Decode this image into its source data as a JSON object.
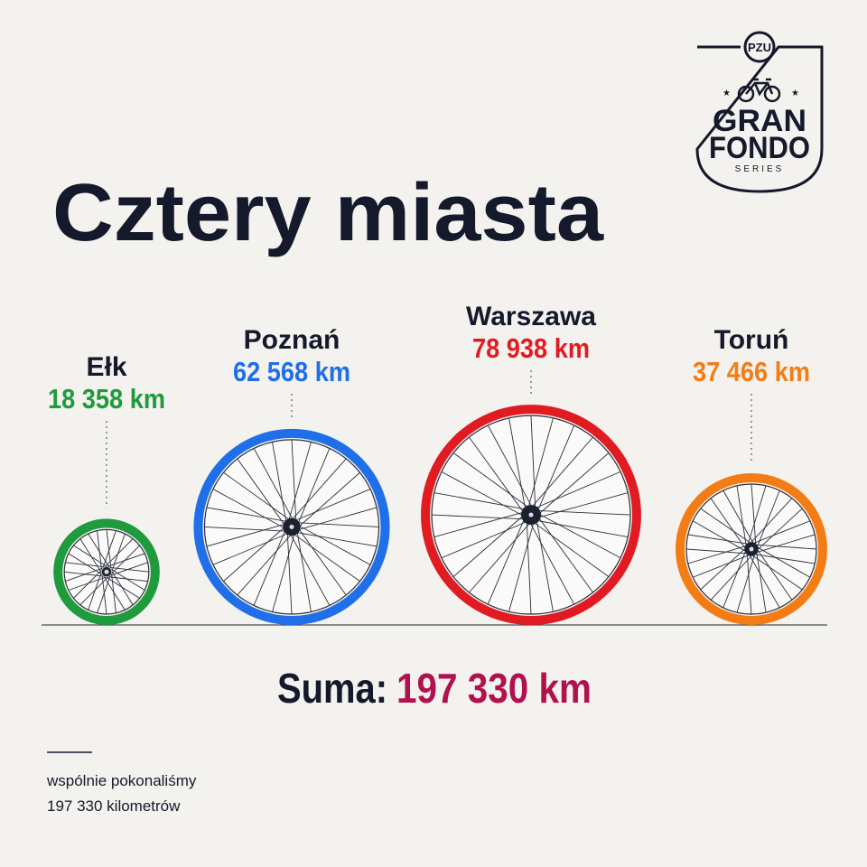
{
  "logo": {
    "badge": "PZU",
    "line1": "GRAN",
    "line2": "FONDO",
    "line3": "SERIES"
  },
  "title": "Cztery miasta",
  "cities": [
    {
      "name": "Ełk",
      "value": 18358,
      "value_label": "18 358 km",
      "color": "#1f9a3c"
    },
    {
      "name": "Poznań",
      "value": 62568,
      "value_label": "62 568 km",
      "color": "#1f6fe8"
    },
    {
      "name": "Warszawa",
      "value": 78938,
      "value_label": "78 938 km",
      "color": "#e01b22"
    },
    {
      "name": "Toruń",
      "value": 37466,
      "value_label": "37 466 km",
      "color": "#f47c14"
    }
  ],
  "total": {
    "label": "Suma:",
    "value_label": "197 330 km",
    "color": "#b0124f"
  },
  "footnote": [
    "wspólnie pokonaliśmy",
    "197 330 kilometrów"
  ]
}
